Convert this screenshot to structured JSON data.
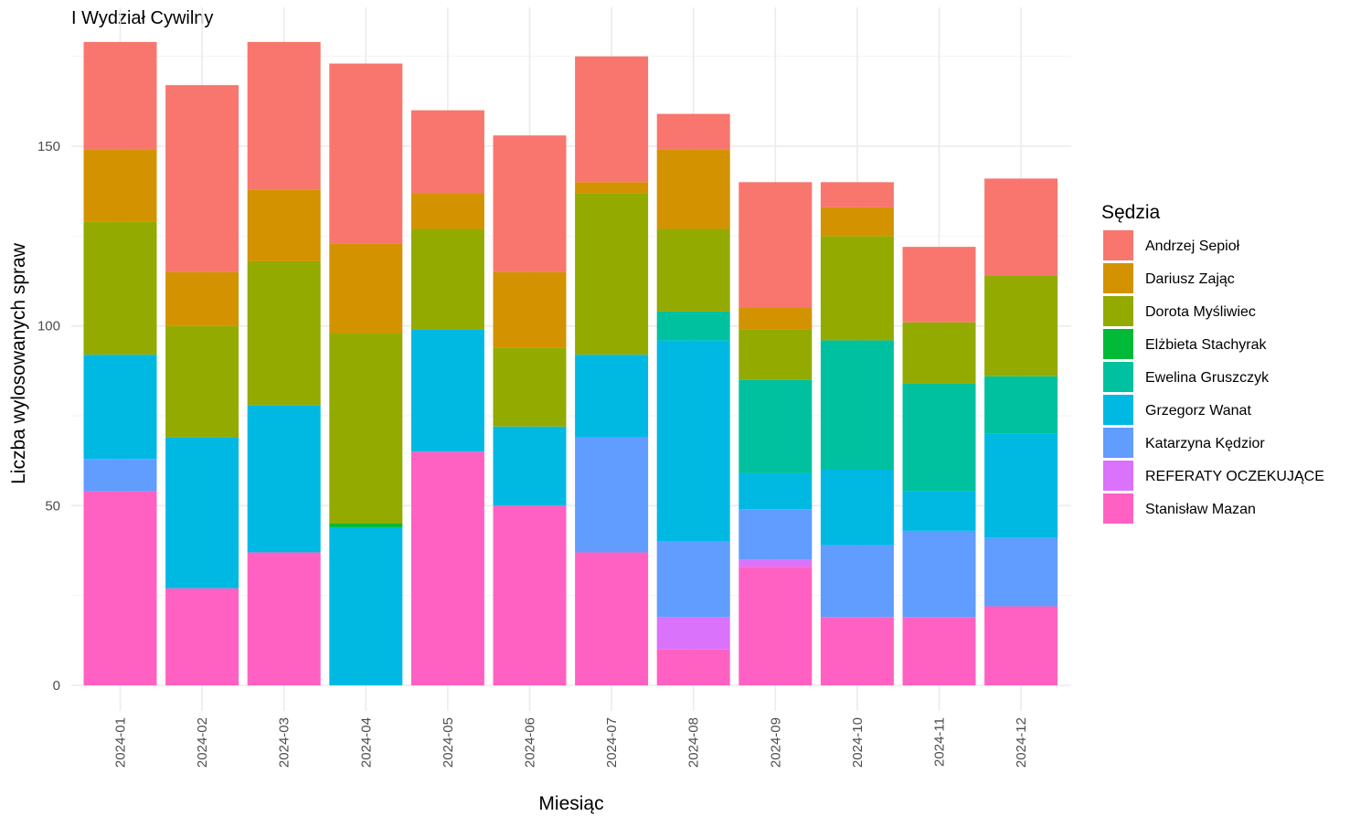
{
  "chart_data": {
    "type": "bar",
    "stacked": true,
    "title": "I Wydział Cywilny",
    "xlabel": "Miesiąc",
    "ylabel": "Liczba wylosowanych spraw",
    "ylim": [
      0,
      180
    ],
    "yticks": [
      0,
      50,
      100,
      150
    ],
    "grid": true,
    "legend": {
      "title": "Sędzia",
      "placement": "right"
    },
    "categories": [
      "2024-01",
      "2024-02",
      "2024-03",
      "2024-04",
      "2024-05",
      "2024-06",
      "2024-07",
      "2024-08",
      "2024-09",
      "2024-10",
      "2024-11",
      "2024-12"
    ],
    "series": [
      {
        "name": "Stanisław Mazan",
        "color": "#FF61C3",
        "values": [
          54,
          27,
          37,
          0,
          65,
          50,
          37,
          10,
          33,
          19,
          19,
          22
        ]
      },
      {
        "name": "REFERATY OCZEKUJĄCE",
        "color": "#DB72FB",
        "values": [
          0,
          0,
          0,
          0,
          0,
          0,
          0,
          9,
          2,
          0,
          0,
          0
        ]
      },
      {
        "name": "Katarzyna Kędzior",
        "color": "#619CFF",
        "values": [
          9,
          0,
          0,
          0,
          0,
          0,
          32,
          21,
          14,
          20,
          24,
          19
        ]
      },
      {
        "name": "Grzegorz Wanat",
        "color": "#00B9E3",
        "values": [
          29,
          42,
          41,
          44,
          34,
          22,
          23,
          56,
          10,
          21,
          11,
          29
        ]
      },
      {
        "name": "Ewelina Gruszczyk",
        "color": "#00C19F",
        "values": [
          0,
          0,
          0,
          0,
          0,
          0,
          0,
          8,
          26,
          36,
          30,
          16
        ]
      },
      {
        "name": "Elżbieta Stachyrak",
        "color": "#00BA38",
        "values": [
          0,
          0,
          0,
          1,
          0,
          0,
          0,
          0,
          0,
          0,
          0,
          0
        ]
      },
      {
        "name": "Dorota Myśliwiec",
        "color": "#93AA00",
        "values": [
          37,
          31,
          40,
          53,
          28,
          22,
          45,
          23,
          14,
          29,
          17,
          28
        ]
      },
      {
        "name": "Dariusz Zając",
        "color": "#D39200",
        "values": [
          20,
          15,
          20,
          25,
          10,
          21,
          3,
          22,
          6,
          8,
          0,
          0
        ]
      },
      {
        "name": "Andrzej Sepioł",
        "color": "#F8766D",
        "values": [
          30,
          52,
          41,
          50,
          23,
          38,
          35,
          10,
          35,
          7,
          21,
          27
        ]
      }
    ],
    "legend_order": [
      "Andrzej Sepioł",
      "Dariusz Zając",
      "Dorota Myśliwiec",
      "Elżbieta Stachyrak",
      "Ewelina Gruszczyk",
      "Grzegorz Wanat",
      "Katarzyna Kędzior",
      "REFERATY OCZEKUJĄCE",
      "Stanisław Mazan"
    ]
  }
}
